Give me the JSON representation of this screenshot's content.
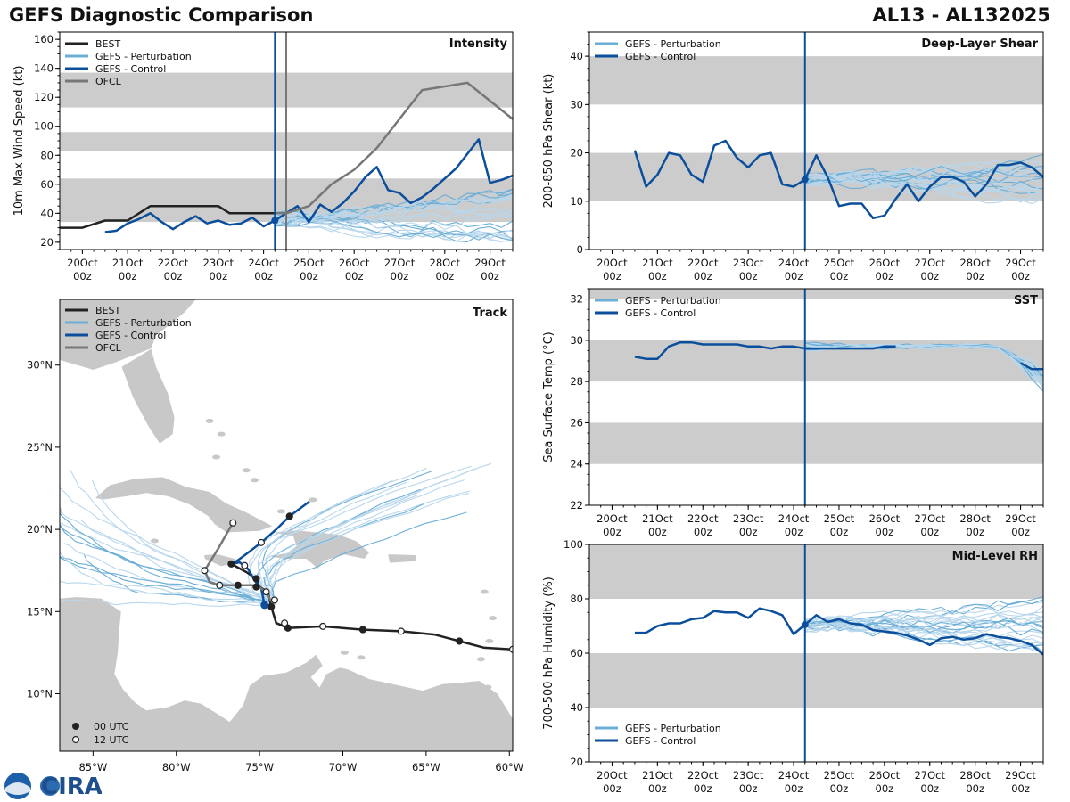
{
  "header": {
    "title": "GEFS Diagnostic Comparison",
    "storm_id": "AL13 - AL132025"
  },
  "colors": {
    "best": "#222222",
    "perturbation": "#6baed6",
    "perturbation_light": "#b9d7ec",
    "control": "#0b4f9c",
    "ofcl": "#777777",
    "band": "#cccccc",
    "land": "#c8c8c8"
  },
  "time_axis": {
    "tick_labels": [
      [
        "20Oct",
        "00z"
      ],
      [
        "21Oct",
        "00z"
      ],
      [
        "22Oct",
        "00z"
      ],
      [
        "23Oct",
        "00z"
      ],
      [
        "24Oct",
        "00z"
      ],
      [
        "25Oct",
        "00z"
      ],
      [
        "26Oct",
        "00z"
      ],
      [
        "27Oct",
        "00z"
      ],
      [
        "28Oct",
        "00z"
      ],
      [
        "29Oct",
        "00z"
      ]
    ],
    "tick_days": [
      0,
      1,
      2,
      3,
      4,
      5,
      6,
      7,
      8,
      9
    ],
    "range_days": [
      -0.5,
      9.5
    ],
    "init_day": 4.25
  },
  "logo": {
    "text": "CIRA",
    "agency": "NOAA"
  },
  "chart_data": [
    {
      "id": "intensity",
      "type": "line",
      "title": "Intensity",
      "ylabel": "10m Max Wind Speed (kt)",
      "ylim": [
        15,
        165
      ],
      "yticks": [
        20,
        40,
        60,
        80,
        100,
        120,
        140,
        160
      ],
      "bands": [
        [
          34,
          64
        ],
        [
          83,
          96
        ],
        [
          113,
          137
        ]
      ],
      "vlines": [
        4.25,
        4.5
      ],
      "legend": [
        "BEST",
        "GEFS - Perturbation",
        "GEFS - Control",
        "OFCL"
      ],
      "series": [
        {
          "name": "BEST",
          "x": [
            -0.5,
            0,
            0.5,
            1,
            1.5,
            2,
            2.5,
            3,
            3.25,
            3.5,
            4,
            4.25
          ],
          "y": [
            30,
            30,
            35,
            35,
            45,
            45,
            45,
            45,
            40,
            40,
            40,
            40
          ]
        },
        {
          "name": "GEFS - Control",
          "x": [
            0.5,
            0.75,
            1,
            1.25,
            1.5,
            1.75,
            2,
            2.25,
            2.5,
            2.75,
            3,
            3.25,
            3.5,
            3.75,
            4,
            4.25,
            4.5,
            4.75,
            5,
            5.25,
            5.5,
            5.75,
            6,
            6.25,
            6.5,
            6.75,
            7,
            7.25,
            7.5,
            7.75,
            8,
            8.25,
            8.5,
            8.75,
            9,
            9.25,
            9.5
          ],
          "y": [
            27,
            28,
            33,
            36,
            40,
            34,
            29,
            34,
            38,
            33,
            35,
            32,
            33,
            37,
            31,
            35,
            40,
            45,
            34,
            46,
            41,
            47,
            55,
            65,
            72,
            56,
            54,
            47,
            51,
            57,
            64,
            71,
            81,
            91,
            61,
            63,
            66
          ]
        },
        {
          "name": "OFCL",
          "x": [
            4.25,
            4.5,
            5,
            5.5,
            6,
            6.5,
            7,
            7.5,
            8.5,
            9.5
          ],
          "y": [
            40,
            40,
            45,
            60,
            70,
            85,
            105,
            125,
            130,
            105
          ]
        }
      ],
      "point": {
        "x": 4.25,
        "y": 35
      }
    },
    {
      "id": "shear",
      "type": "line",
      "title": "Deep-Layer Shear",
      "ylabel": "200-850 hPa Shear (kt)",
      "ylim": [
        0,
        45
      ],
      "yticks": [
        0,
        10,
        20,
        30,
        40
      ],
      "bands": [
        [
          10,
          20
        ],
        [
          30,
          40
        ]
      ],
      "vlines": [
        4.25
      ],
      "legend": [
        "GEFS - Perturbation",
        "GEFS - Control"
      ],
      "series": [
        {
          "name": "GEFS - Control",
          "x": [
            0.5,
            0.75,
            1,
            1.25,
            1.5,
            1.75,
            2,
            2.25,
            2.5,
            2.75,
            3,
            3.25,
            3.5,
            3.75,
            4,
            4.25,
            4.5,
            4.75,
            5,
            5.25,
            5.5,
            5.75,
            6,
            6.25,
            6.5,
            6.75,
            7,
            7.25,
            7.5,
            7.75,
            8,
            8.25,
            8.5,
            8.75,
            9,
            9.25,
            9.5
          ],
          "y": [
            20.5,
            13,
            15.5,
            20,
            19.5,
            15.5,
            14,
            21.5,
            22.5,
            19,
            17,
            19.5,
            20,
            13.5,
            13,
            14.5,
            19.5,
            15,
            9,
            9.5,
            9.5,
            6.5,
            7,
            10.5,
            13.5,
            10,
            13,
            15,
            15,
            14,
            11,
            13.5,
            17.5,
            17.5,
            18,
            17,
            15
          ]
        }
      ],
      "point": {
        "x": 4.25,
        "y": 14.5
      }
    },
    {
      "id": "sst",
      "type": "line",
      "title": "SST",
      "ylabel": "Sea Surface Temp (°C)",
      "ylim": [
        22,
        32.5
      ],
      "yticks": [
        22,
        24,
        26,
        28,
        30,
        32
      ],
      "bands": [
        [
          24,
          26
        ],
        [
          28,
          30
        ],
        [
          32,
          32.5
        ]
      ],
      "vlines": [
        4.25
      ],
      "legend": [
        "GEFS - Perturbation",
        "GEFS - Control"
      ],
      "series": [
        {
          "name": "GEFS - Control",
          "x": [
            0.5,
            0.75,
            1,
            1.25,
            1.5,
            1.75,
            2,
            2.25,
            2.5,
            2.75,
            3,
            3.25,
            3.5,
            3.75,
            4,
            4.25,
            4.5,
            4.75,
            5,
            5.25,
            5.5,
            5.75,
            6,
            6.25
          ],
          "y": [
            29.2,
            29.1,
            29.1,
            29.7,
            29.9,
            29.9,
            29.8,
            29.8,
            29.8,
            29.8,
            29.7,
            29.7,
            29.6,
            29.7,
            29.7,
            29.6,
            29.6,
            29.6,
            29.6,
            29.6,
            29.6,
            29.6,
            29.7,
            29.7
          ]
        },
        {
          "name": "GEFS - Control (tail)",
          "x": [
            9,
            9.25,
            9.5
          ],
          "y": [
            28.9,
            28.6,
            28.6
          ]
        }
      ]
    },
    {
      "id": "rh",
      "type": "line",
      "title": "Mid-Level RH",
      "ylabel": "700-500 hPa Humidity (%)",
      "ylim": [
        20,
        100
      ],
      "yticks": [
        20,
        40,
        60,
        80,
        100
      ],
      "bands": [
        [
          40,
          60
        ],
        [
          80,
          100
        ]
      ],
      "vlines": [
        4.25
      ],
      "legend": [
        "GEFS - Perturbation",
        "GEFS - Control"
      ],
      "series": [
        {
          "name": "GEFS - Control",
          "x": [
            0.5,
            0.75,
            1,
            1.25,
            1.5,
            1.75,
            2,
            2.25,
            2.5,
            2.75,
            3,
            3.25,
            3.5,
            3.75,
            4,
            4.25,
            4.5,
            4.75,
            5,
            5.25,
            5.5,
            5.75,
            6,
            6.25,
            6.5,
            6.75,
            7,
            7.25,
            7.5,
            7.75,
            8,
            8.25,
            8.5,
            8.75,
            9,
            9.25,
            9.5
          ],
          "y": [
            67.5,
            67.5,
            70,
            71,
            71,
            72.5,
            73,
            75.5,
            75,
            75,
            73,
            76.5,
            75.5,
            74,
            67,
            70.5,
            74,
            71.5,
            72.5,
            71,
            70.5,
            68.5,
            68,
            67.5,
            66.5,
            65,
            63,
            65.5,
            66,
            65,
            65.5,
            67,
            66,
            65.5,
            64.5,
            63,
            59.5
          ]
        }
      ],
      "point": {
        "x": 4.25,
        "y": 70.5
      }
    },
    {
      "id": "track",
      "type": "scatter",
      "title": "Track",
      "xlabel": "Longitude",
      "ylabel": "Latitude",
      "xlim": [
        -87,
        -59.8
      ],
      "ylim": [
        6.5,
        34
      ],
      "xtick_labels": [
        "85°W",
        "80°W",
        "75°W",
        "70°W",
        "65°W",
        "60°W"
      ],
      "xtick_values": [
        -85,
        -80,
        -75,
        -70,
        -65,
        -60
      ],
      "ytick_labels": [
        "10°N",
        "15°N",
        "20°N",
        "25°N",
        "30°N"
      ],
      "ytick_values": [
        10,
        15,
        20,
        25,
        30
      ],
      "legend": [
        "BEST",
        "GEFS - Perturbation",
        "GEFS - Control",
        "OFCL"
      ],
      "marker_legend": [
        "00 UTC",
        "12 UTC"
      ],
      "series": [
        {
          "name": "BEST",
          "lon": [
            -59.8,
            -61.5,
            -63,
            -64.5,
            -66.5,
            -68.8,
            -71.2,
            -73.3,
            -74,
            -74.3,
            -74.5,
            -75,
            -75.2,
            -75.8,
            -76.7
          ],
          "lat": [
            12.7,
            12.8,
            13.2,
            13.6,
            13.8,
            13.9,
            14.1,
            14.0,
            14.3,
            15.3,
            16.2,
            16.5,
            17.0,
            17.4,
            17.9
          ]
        },
        {
          "name": "GEFS - Control",
          "lon": [
            -74.7,
            -74.9,
            -75.3,
            -75.7,
            -76.2,
            -76.6,
            -75.8,
            -74.9,
            -74.0,
            -73.2,
            -72.0
          ],
          "lat": [
            15.4,
            16.4,
            16.9,
            17.6,
            18.0,
            17.9,
            18.5,
            19.2,
            20.0,
            20.8,
            21.7
          ]
        },
        {
          "name": "OFCL",
          "lon": [
            -74.3,
            -74.6,
            -75.2,
            -76.3,
            -77.4,
            -78.0,
            -78.3,
            -77.5,
            -76.6
          ],
          "lat": [
            15.6,
            16.2,
            16.6,
            16.6,
            16.6,
            16.8,
            17.5,
            18.8,
            20.4
          ]
        }
      ],
      "markers_00": [
        [
          -63,
          13.2
        ],
        [
          -68.8,
          13.9
        ],
        [
          -73.3,
          14.0
        ],
        [
          -74.3,
          15.3
        ],
        [
          -75.2,
          17.0
        ],
        [
          -76.7,
          17.9
        ],
        [
          -75.2,
          16.5
        ],
        [
          -76.3,
          16.6
        ],
        [
          -73.2,
          20.8
        ]
      ],
      "markers_12": [
        [
          -59.8,
          12.7
        ],
        [
          -66.5,
          13.8
        ],
        [
          -71.2,
          14.1
        ],
        [
          -73.5,
          14.3
        ],
        [
          -74.1,
          15.7
        ],
        [
          -74.6,
          16.2
        ],
        [
          -77.4,
          16.6
        ],
        [
          -78.3,
          17.5
        ],
        [
          -75.9,
          17.8
        ],
        [
          -74.9,
          19.2
        ],
        [
          -76.6,
          20.4
        ]
      ],
      "current_position": [
        -74.7,
        15.4
      ]
    }
  ]
}
